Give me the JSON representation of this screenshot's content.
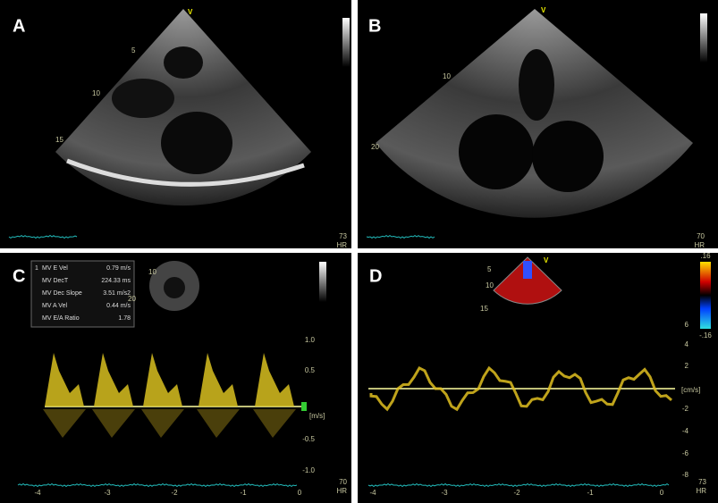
{
  "panels": [
    {
      "label": "A",
      "marker": "V",
      "depth_marks": [
        "5",
        "10",
        "15"
      ],
      "heart_rate": "73",
      "hr_unit": "HR"
    },
    {
      "label": "B",
      "marker": "V",
      "depth_marks": [
        "10",
        "20"
      ],
      "heart_rate": "70",
      "hr_unit": "HR"
    },
    {
      "label": "C",
      "index": "1",
      "measurements": [
        {
          "name": "MV E Vel",
          "value": "0.79 m/s"
        },
        {
          "name": "MV DecT",
          "value": "224.33 ms"
        },
        {
          "name": "MV Dec Slope",
          "value": "3.51 m/s2"
        },
        {
          "name": "MV A Vel",
          "value": "0.44 m/s"
        },
        {
          "name": "MV E/A Ratio",
          "value": "1.78"
        }
      ],
      "probe_depths": [
        "10",
        "20"
      ],
      "y_ticks": [
        "1.0",
        "0.5",
        "-0.5",
        "-1.0"
      ],
      "unit": "[m/s]",
      "x_ticks": [
        "-4",
        "-3",
        "-2",
        "-1",
        "0"
      ],
      "heart_rate": "70",
      "hr_unit": "HR"
    },
    {
      "label": "D",
      "marker": "V",
      "probe_depths": [
        "5",
        "10",
        "15"
      ],
      "color_scale": [
        ".16",
        "-.16"
      ],
      "y_ticks": [
        "6",
        "4",
        "2",
        "-2",
        "-4",
        "-6",
        "-8"
      ],
      "unit": "[cm/s]",
      "x_ticks": [
        "-4",
        "-3",
        "-2",
        "-1",
        "0"
      ],
      "heart_rate": "73",
      "hr_unit": "HR"
    }
  ]
}
